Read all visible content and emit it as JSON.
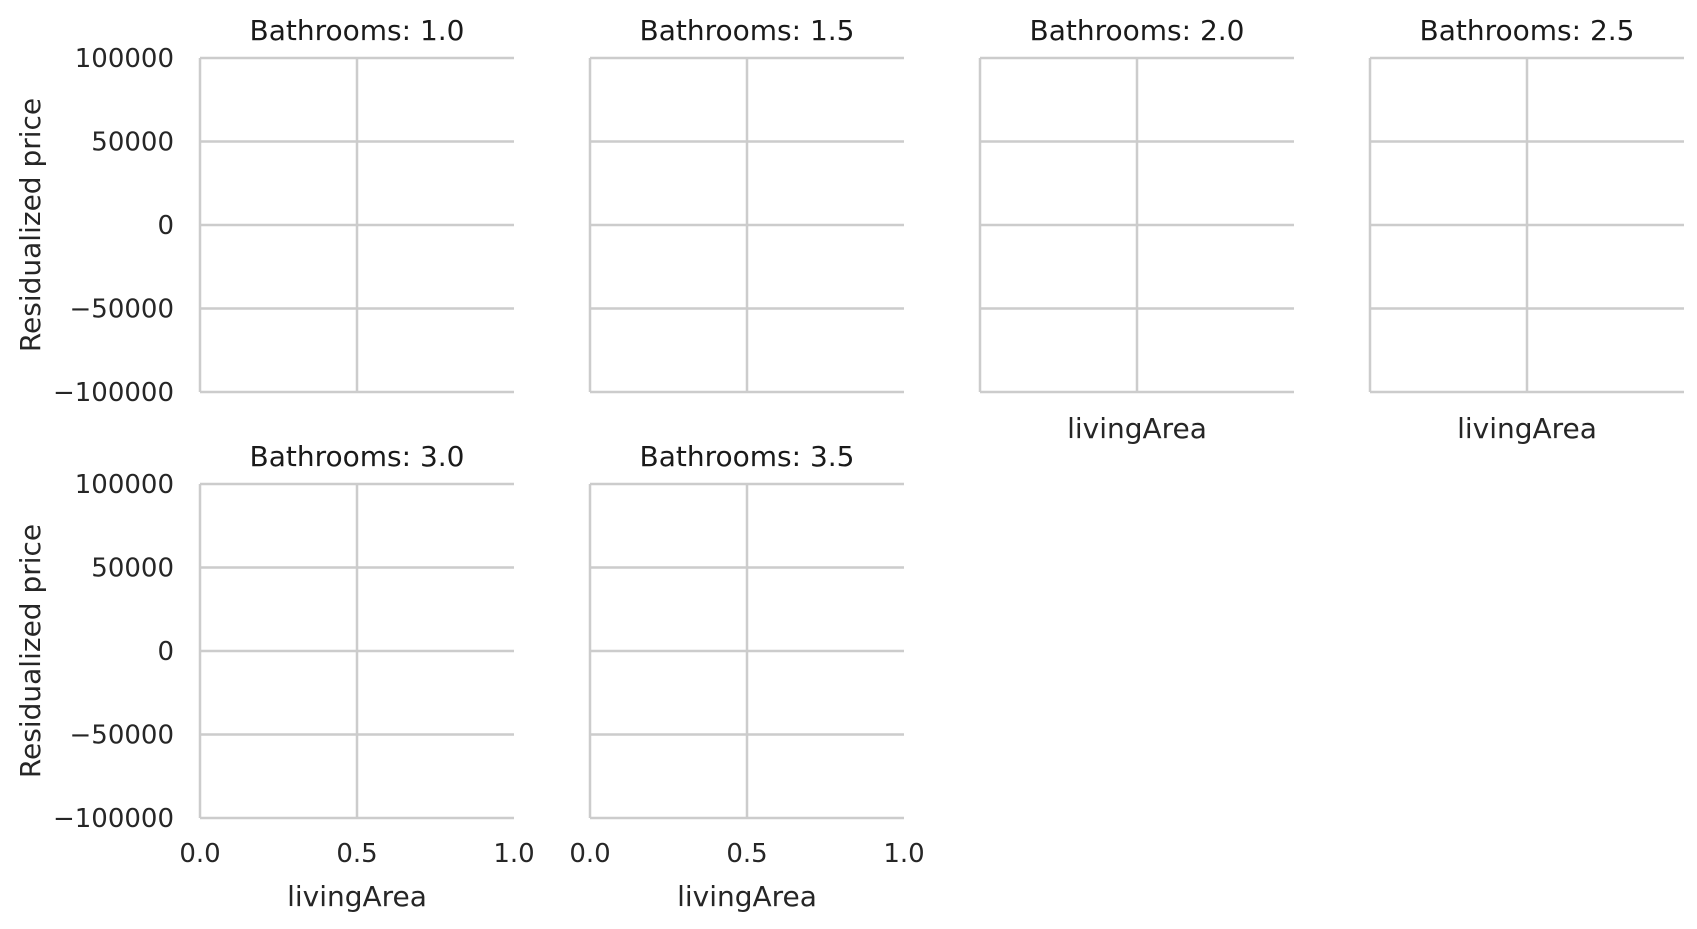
{
  "chart_data": {
    "type": "scatter",
    "layout": "facet-grid",
    "grid": true,
    "xlabel": "livingArea",
    "ylabel": "Residualized price",
    "xlim": [
      0.0,
      1.0
    ],
    "ylim": [
      -100000,
      100000
    ],
    "xticks": [
      0.0,
      0.5,
      1.0
    ],
    "xtick_labels": [
      "0.0",
      "0.5",
      "1.0"
    ],
    "yticks": [
      100000,
      50000,
      0,
      -50000,
      -100000
    ],
    "ytick_labels": [
      "100000",
      "50000",
      "0",
      "−50000",
      "−100000"
    ],
    "panels": [
      {
        "title": "Bathrooms: 1.0",
        "points": []
      },
      {
        "title": "Bathrooms: 1.5",
        "points": []
      },
      {
        "title": "Bathrooms: 2.0",
        "points": []
      },
      {
        "title": "Bathrooms: 2.5",
        "points": []
      },
      {
        "title": "Bathrooms: 3.0",
        "points": []
      },
      {
        "title": "Bathrooms: 3.5",
        "points": []
      }
    ]
  }
}
